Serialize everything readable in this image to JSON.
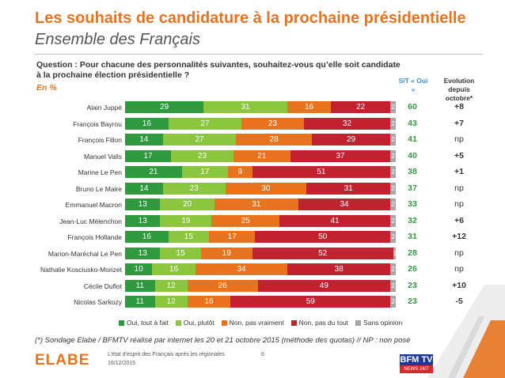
{
  "header": {
    "title": "Les souhaits de candidature à la prochaine présidentielle",
    "subtitle": "Ensemble des Français"
  },
  "question": "Question : Pour chacune des personnalités suivantes, souhaitez-vous qu’elle soit candidate à la prochaine élection présidentielle ?",
  "unit_label": "En %",
  "columns": {
    "st_label": "S/T « Oui »",
    "evolution_label": "Evolution depuis octobre*"
  },
  "colors": {
    "tout_a_fait": "#2e9a3d",
    "plutot": "#8cc63e",
    "pas_vraiment": "#e8731f",
    "pas_du_tout": "#c0222f",
    "sans_opinion": "#a6a6a6",
    "accent": "#e8731f",
    "st": "#2e9a3d"
  },
  "chart_data": {
    "type": "bar",
    "orientation": "horizontal",
    "stacked": true,
    "percent_total": 100,
    "categories": [
      "Alain Juppé",
      "François Bayrou",
      "François Fillon",
      "Manuel Valls",
      "Marine Le Pen",
      "Bruno Le Maire",
      "Emmanuel Macron",
      "Jean-Luc Mélenchon",
      "François Hollande",
      "Marion-Maréchal Le Pen",
      "Nathalie Kosciusko-Morizet",
      "Cécile Duflot",
      "Nicolas Sarkozy"
    ],
    "series": [
      {
        "name": "Oui, tout à fait",
        "color_key": "tout_a_fait",
        "values": [
          29,
          16,
          14,
          17,
          21,
          14,
          13,
          13,
          16,
          13,
          10,
          11,
          11
        ]
      },
      {
        "name": "Oui, plutôt",
        "color_key": "plutot",
        "values": [
          31,
          27,
          27,
          23,
          17,
          23,
          20,
          19,
          15,
          15,
          16,
          12,
          12
        ]
      },
      {
        "name": "Non, pas vraiment",
        "color_key": "pas_vraiment",
        "values": [
          16,
          23,
          28,
          21,
          9,
          30,
          31,
          25,
          17,
          19,
          34,
          26,
          16
        ]
      },
      {
        "name": "Non, pas du tout",
        "color_key": "pas_du_tout",
        "values": [
          22,
          32,
          29,
          37,
          51,
          31,
          34,
          41,
          50,
          52,
          38,
          49,
          59
        ]
      },
      {
        "name": "Sans opinion",
        "color_key": "sans_opinion",
        "values": [
          2,
          2,
          2,
          2,
          2,
          2,
          2,
          2,
          2,
          1,
          2,
          2,
          2
        ]
      }
    ],
    "st_oui": [
      60,
      43,
      41,
      40,
      38,
      37,
      33,
      32,
      31,
      28,
      26,
      23,
      23
    ],
    "evolution": [
      "+8",
      "+7",
      "np",
      "+5",
      "+1",
      "np",
      "np",
      "+6",
      "+12",
      "np",
      "np",
      "+10",
      "-5"
    ],
    "legend_position": "bottom",
    "grid": false
  },
  "footnote": "(*) Sondage Elabe / BFMTV réalisé par internet les 20 et 21 octobre 2015 (méthode des quotas) // NP : non posé",
  "footer": {
    "logo": "ELABE",
    "report_title": "L’état d’esprit des Français après les régionales",
    "date": "16/12/2015",
    "page": "6",
    "brand_logo": "BFM TV",
    "brand_sub": "NEWS 24/7"
  }
}
